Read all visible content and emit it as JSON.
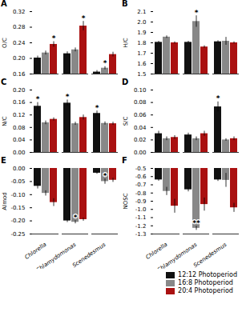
{
  "chart_data": [
    {
      "type": "bar",
      "title": "A",
      "ylabel": "O/C",
      "categories": [
        "Chlorella",
        "Chlamydomonas",
        "Scenedesmus"
      ],
      "series": [
        {
          "name": "12:12 Photoperiod",
          "color": "#111111",
          "values": [
            0.201,
            0.212,
            0.165
          ],
          "errors": [
            0.005,
            0.005,
            0.004
          ]
        },
        {
          "name": "16:8 Photoperiod",
          "color": "#888888",
          "values": [
            0.214,
            0.222,
            0.175
          ],
          "errors": [
            0.005,
            0.005,
            0.004
          ]
        },
        {
          "name": "20:4 Photoperiod",
          "color": "#aa1111",
          "values": [
            0.236,
            0.283,
            0.21
          ],
          "errors": [
            0.007,
            0.012,
            0.006
          ]
        }
      ],
      "ylim": [
        0.16,
        0.32
      ],
      "yticks": [
        0.16,
        {
          "value": 0.2,
          "label": "0.20"
        },
        0.24,
        0.28,
        0.32
      ],
      "tick_labels": "y",
      "annotations": [
        {
          "category": "Chlorella",
          "series": "20:4 Photoperiod",
          "text": "*"
        },
        {
          "category": "Chlamydomonas",
          "series": "20:4 Photoperiod",
          "text": "*"
        },
        {
          "category": "Scenedesmus",
          "series": "16:8 Photoperiod",
          "text": "*"
        }
      ]
    },
    {
      "type": "bar",
      "title": "B",
      "ylabel": "H/C",
      "categories": [
        "Chlorella",
        "Chlamydomonas",
        "Scenedesmus"
      ],
      "series": [
        {
          "name": "12:12 Photoperiod",
          "color": "#111111",
          "values": [
            1.805,
            1.805,
            1.81
          ],
          "errors": [
            0.01,
            0.01,
            0.01
          ]
        },
        {
          "name": "16:8 Photoperiod",
          "color": "#888888",
          "values": [
            1.855,
            2.005,
            1.815
          ],
          "errors": [
            0.012,
            0.055,
            0.038
          ]
        },
        {
          "name": "20:4 Photoperiod",
          "color": "#aa1111",
          "values": [
            1.8,
            1.76,
            1.8
          ],
          "errors": [
            0.01,
            0.012,
            0.01
          ]
        }
      ],
      "ylim": [
        1.5,
        2.1
      ],
      "yticks": [
        1.5,
        1.6,
        1.7,
        1.8,
        1.9,
        {
          "value": 2.0,
          "label": "2.0"
        },
        2.1
      ],
      "tick_labels": "y",
      "annotations": [
        {
          "category": "Chlamydomonas",
          "series": "16:8 Photoperiod",
          "text": "*"
        }
      ]
    },
    {
      "type": "bar",
      "title": "C",
      "ylabel": "N/C",
      "categories": [
        "Chlorella",
        "Chlamydomonas",
        "Scenedesmus"
      ],
      "series": [
        {
          "name": "12:12 Photoperiod",
          "color": "#111111",
          "values": [
            0.148,
            0.158,
            0.125
          ],
          "errors": [
            0.012,
            0.01,
            0.008
          ]
        },
        {
          "name": "16:8 Photoperiod",
          "color": "#888888",
          "values": [
            0.095,
            0.092,
            0.093
          ],
          "errors": [
            0.006,
            0.005,
            0.005
          ]
        },
        {
          "name": "20:4 Photoperiod",
          "color": "#aa1111",
          "values": [
            0.106,
            0.112,
            0.092
          ],
          "errors": [
            0.005,
            0.008,
            0.005
          ]
        }
      ],
      "ylim": [
        0.0,
        0.2
      ],
      "yticks": [
        {
          "value": 0.0,
          "label": "0.00"
        },
        0.04,
        0.08,
        0.12,
        0.16,
        {
          "value": 0.2,
          "label": "0.20"
        }
      ],
      "tick_labels": "y",
      "annotations": [
        {
          "category": "Chlorella",
          "series": "12:12 Photoperiod",
          "text": "*"
        },
        {
          "category": "Chlamydomonas",
          "series": "12:12 Photoperiod",
          "text": "*"
        },
        {
          "category": "Scenedesmus",
          "series": "12:12 Photoperiod",
          "text": "*"
        }
      ]
    },
    {
      "type": "bar",
      "title": "D",
      "ylabel": "S/C",
      "categories": [
        "Chlorella",
        "Chlamydomonas",
        "Scenedesmus"
      ],
      "series": [
        {
          "name": "12:12 Photoperiod",
          "color": "#111111",
          "values": [
            0.03,
            0.028,
            0.073
          ],
          "errors": [
            0.004,
            0.003,
            0.008
          ]
        },
        {
          "name": "16:8 Photoperiod",
          "color": "#888888",
          "values": [
            0.022,
            0.022,
            0.02
          ],
          "errors": [
            0.003,
            0.003,
            0.002
          ]
        },
        {
          "name": "20:4 Photoperiod",
          "color": "#aa1111",
          "values": [
            0.024,
            0.03,
            0.022
          ],
          "errors": [
            0.003,
            0.004,
            0.003
          ]
        }
      ],
      "ylim": [
        0.0,
        0.1
      ],
      "yticks": [
        {
          "value": 0.0,
          "label": "0.00"
        },
        0.02,
        0.04,
        0.06,
        0.08,
        {
          "value": 0.1,
          "label": "0.10"
        }
      ],
      "tick_labels": "y",
      "annotations": [
        {
          "category": "Scenedesmus",
          "series": "12:12 Photoperiod",
          "text": "*"
        }
      ]
    },
    {
      "type": "bar",
      "title": "E",
      "ylabel": "AImod",
      "categories": [
        "Chlorella",
        "Chlamydomonas",
        "Scenedesmus"
      ],
      "series": [
        {
          "name": "12:12 Photoperiod",
          "color": "#111111",
          "values": [
            -0.068,
            -0.2,
            -0.018
          ],
          "errors": [
            0.01,
            0.006,
            0.004
          ]
        },
        {
          "name": "16:8 Photoperiod",
          "color": "#888888",
          "values": [
            -0.095,
            -0.205,
            -0.05
          ],
          "errors": [
            0.01,
            0.006,
            0.01
          ]
        },
        {
          "name": "20:4 Photoperiod",
          "color": "#aa1111",
          "values": [
            -0.13,
            -0.195,
            -0.045
          ],
          "errors": [
            0.015,
            0.006,
            0.008
          ]
        }
      ],
      "ylim": [
        -0.25,
        0.0
      ],
      "yticks": [
        -0.25,
        {
          "value": -0.2,
          "label": "-0.20"
        },
        -0.15,
        {
          "value": -0.1,
          "label": "-0.10"
        },
        -0.05,
        {
          "value": 0.0,
          "label": "0.00"
        }
      ],
      "annotations": [
        {
          "category": "Chlamydomonas",
          "series": "16:8 Photoperiod",
          "text": "*"
        },
        {
          "category": "Scenedesmus",
          "series": "16:8 Photoperiod",
          "text": "*"
        }
      ]
    },
    {
      "type": "bar",
      "title": "F",
      "ylabel": "NOSC",
      "categories": [
        "Chlorella",
        "Chlamydomonas",
        "Scenedesmus"
      ],
      "series": [
        {
          "name": "12:12 Photoperiod",
          "color": "#111111",
          "values": [
            -0.64,
            -0.76,
            -0.64
          ],
          "errors": [
            0.015,
            0.025,
            0.018
          ]
        },
        {
          "name": "16:8 Photoperiod",
          "color": "#888888",
          "values": [
            -0.78,
            -1.23,
            -0.645
          ],
          "errors": [
            0.05,
            0.025,
            0.085
          ]
        },
        {
          "name": "20:4 Photoperiod",
          "color": "#aa1111",
          "values": [
            -0.96,
            -0.94,
            -0.98
          ],
          "errors": [
            0.085,
            0.08,
            0.055
          ]
        }
      ],
      "ylim": [
        -1.3,
        -0.5
      ],
      "yticks": [
        -1.3,
        -1.2,
        -1.1,
        {
          "value": -1.0,
          "label": "-1.0"
        },
        -0.9,
        -0.8,
        -0.7,
        -0.6,
        -0.5
      ],
      "legend": "lower right",
      "annotations": [
        {
          "category": "Chlamydomonas",
          "series": "16:8 Photoperiod",
          "text": "**"
        }
      ]
    }
  ]
}
